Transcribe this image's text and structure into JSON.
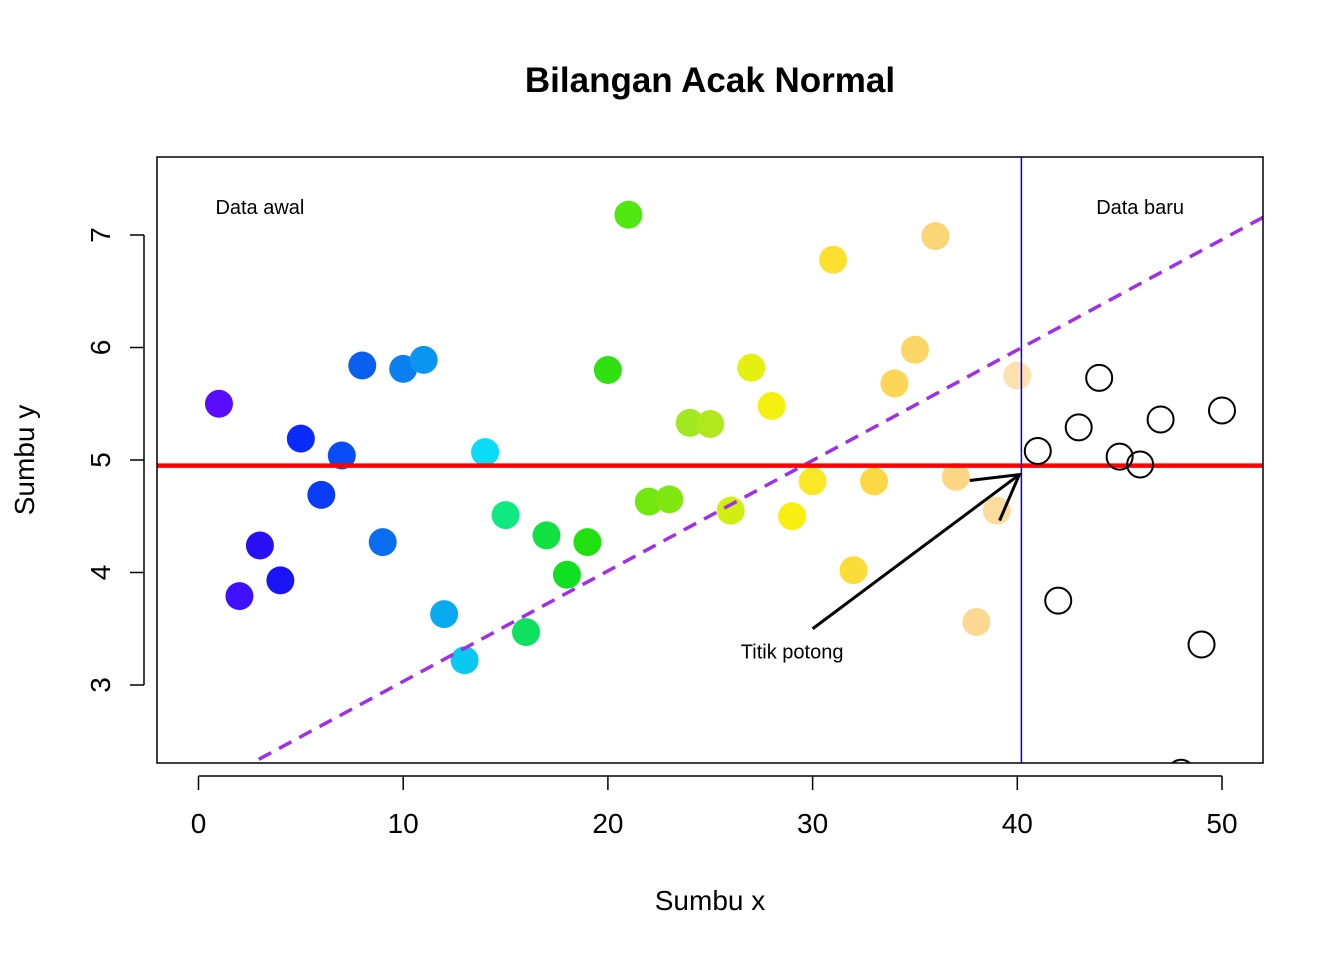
{
  "chart_data": {
    "type": "scatter",
    "title": "Bilangan Acak Normal",
    "xlabel": "Sumbu x",
    "ylabel": "Sumbu y",
    "xlim": [
      -2,
      52
    ],
    "ylim": [
      2.3,
      7.7
    ],
    "xticks": [
      0,
      10,
      20,
      30,
      40,
      50
    ],
    "yticks": [
      3,
      4,
      5,
      6,
      7
    ],
    "points_filled": [
      {
        "x": 1,
        "y": 5.5,
        "color": "#5a0cff"
      },
      {
        "x": 2,
        "y": 3.79,
        "color": "#4010ff"
      },
      {
        "x": 3,
        "y": 4.24,
        "color": "#2a10f5"
      },
      {
        "x": 4,
        "y": 3.93,
        "color": "#1a14f5"
      },
      {
        "x": 5,
        "y": 5.19,
        "color": "#0a2aff"
      },
      {
        "x": 6,
        "y": 4.69,
        "color": "#0a3cf5"
      },
      {
        "x": 7,
        "y": 5.04,
        "color": "#0a4cf5"
      },
      {
        "x": 8,
        "y": 5.84,
        "color": "#0a5ef0"
      },
      {
        "x": 9,
        "y": 4.27,
        "color": "#0a6ef0"
      },
      {
        "x": 10,
        "y": 5.81,
        "color": "#0a80f0"
      },
      {
        "x": 11,
        "y": 5.89,
        "color": "#0a96f0"
      },
      {
        "x": 12,
        "y": 3.63,
        "color": "#0aaaf0"
      },
      {
        "x": 13,
        "y": 3.22,
        "color": "#0ac8f0"
      },
      {
        "x": 14,
        "y": 5.07,
        "color": "#0adcf5"
      },
      {
        "x": 15,
        "y": 4.51,
        "color": "#10e880"
      },
      {
        "x": 16,
        "y": 3.47,
        "color": "#10e060"
      },
      {
        "x": 17,
        "y": 4.33,
        "color": "#10e040"
      },
      {
        "x": 18,
        "y": 3.98,
        "color": "#10e020"
      },
      {
        "x": 19,
        "y": 4.27,
        "color": "#20e010"
      },
      {
        "x": 20,
        "y": 5.8,
        "color": "#30e010"
      },
      {
        "x": 21,
        "y": 7.18,
        "color": "#50e810"
      },
      {
        "x": 22,
        "y": 4.63,
        "color": "#70e810"
      },
      {
        "x": 23,
        "y": 4.65,
        "color": "#80e810"
      },
      {
        "x": 24,
        "y": 5.33,
        "color": "#a0e820"
      },
      {
        "x": 25,
        "y": 5.32,
        "color": "#b0e820"
      },
      {
        "x": 26,
        "y": 4.55,
        "color": "#d0ee10"
      },
      {
        "x": 27,
        "y": 5.82,
        "color": "#e4f010"
      },
      {
        "x": 28,
        "y": 5.48,
        "color": "#f4f010"
      },
      {
        "x": 29,
        "y": 4.5,
        "color": "#f8ee10"
      },
      {
        "x": 30,
        "y": 4.81,
        "color": "#fae828"
      },
      {
        "x": 31,
        "y": 6.78,
        "color": "#fce030"
      },
      {
        "x": 32,
        "y": 4.02,
        "color": "#fcdc38"
      },
      {
        "x": 33,
        "y": 4.81,
        "color": "#fcd844"
      },
      {
        "x": 34,
        "y": 5.68,
        "color": "#fcd654"
      },
      {
        "x": 35,
        "y": 5.98,
        "color": "#fcd664"
      },
      {
        "x": 36,
        "y": 6.99,
        "color": "#fcd676"
      },
      {
        "x": 37,
        "y": 4.85,
        "color": "#fcd684"
      },
      {
        "x": 38,
        "y": 3.56,
        "color": "#fcd890"
      },
      {
        "x": 39,
        "y": 4.55,
        "color": "#fcdc9c"
      },
      {
        "x": 40,
        "y": 5.75,
        "color": "#fce0b0"
      }
    ],
    "points_open": [
      {
        "x": 41,
        "y": 5.08
      },
      {
        "x": 42,
        "y": 3.75
      },
      {
        "x": 43,
        "y": 5.29
      },
      {
        "x": 44,
        "y": 5.73
      },
      {
        "x": 45,
        "y": 5.03
      },
      {
        "x": 46,
        "y": 4.96
      },
      {
        "x": 47,
        "y": 5.36
      },
      {
        "x": 48,
        "y": 2.22
      },
      {
        "x": 49,
        "y": 3.36
      },
      {
        "x": 50,
        "y": 5.44
      }
    ],
    "hline": {
      "y": 4.95,
      "color": "#ff0000"
    },
    "vline": {
      "x": 40.2,
      "color": "#0000ff"
    },
    "regression_line": {
      "intercept": 2.05,
      "slope": 0.0982,
      "color": "#a030e8",
      "style": "dashed"
    },
    "annotations": {
      "data_awal": "Data awal",
      "data_baru": "Data baru",
      "titik_potong": "Titik potong"
    },
    "arrow": {
      "from": [
        30,
        3.5
      ],
      "to": [
        40.1,
        4.87
      ]
    },
    "grid": false,
    "legend": "none"
  }
}
